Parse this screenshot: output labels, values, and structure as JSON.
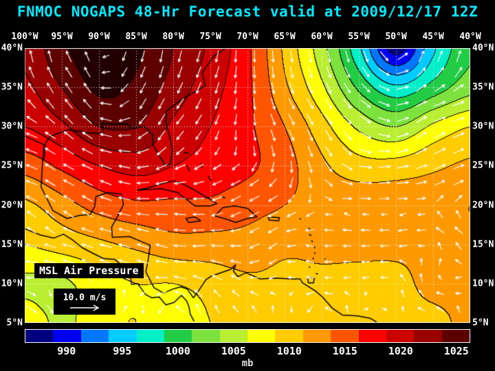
{
  "title": "FNMOC NOGAPS 48-Hr Forecast valid at 2009/12/17 12Z",
  "colors": {
    "background": "#000000",
    "title_text": "#00eaff",
    "axis_text": "#ffffff",
    "grid_lines": "#ffffff",
    "wind_arrows": "#ffffff",
    "coastlines": "#000000"
  },
  "map": {
    "label": "MSL Air Pressure",
    "wind_scale_label": "10.0 m/s",
    "lon_labels": [
      "100°W",
      "95°W",
      "90°W",
      "85°W",
      "80°W",
      "75°W",
      "70°W",
      "65°W",
      "60°W",
      "55°W",
      "50°W",
      "45°W",
      "40°W"
    ],
    "lat_labels": [
      "40°N",
      "35°N",
      "30°N",
      "25°N",
      "20°N",
      "15°N",
      "10°N",
      "5°N"
    ]
  },
  "colorbar": {
    "tick_labels": [
      "990",
      "995",
      "1000",
      "1005",
      "1010",
      "1015",
      "1020",
      "1025"
    ],
    "units": "mb"
  },
  "chart_data": {
    "type": "heatmap",
    "title": "FNMOC NOGAPS 48-Hr Forecast valid at 2009/12/17 12Z",
    "field": "MSL Air Pressure",
    "units": "mb",
    "model": "FNMOC NOGAPS",
    "forecast_hours": 48,
    "valid_time": "2009/12/17 12Z",
    "wind_overlay": "white vector arrows, reference arrow 10.0 m/s",
    "legend_position": "bottom",
    "lon_deg_west": [
      100,
      95,
      90,
      85,
      80,
      75,
      70,
      65,
      60,
      55,
      50,
      45,
      40
    ],
    "lat_deg_north": [
      40,
      35,
      30,
      25,
      20,
      15,
      10,
      5
    ],
    "pressure_mb": [
      [
        1023,
        1027,
        1029,
        1028,
        1025,
        1022,
        1018,
        1012,
        1006,
        998,
        989,
        997,
        1002
      ],
      [
        1022,
        1025,
        1028,
        1027,
        1024,
        1021,
        1018,
        1013,
        1008,
        1002,
        998,
        1001,
        1004
      ],
      [
        1020,
        1022,
        1025,
        1025,
        1022,
        1020,
        1018,
        1015,
        1011,
        1007,
        1005,
        1008,
        1010
      ],
      [
        1016,
        1018,
        1020,
        1021,
        1020,
        1019,
        1018,
        1016,
        1013,
        1011,
        1011,
        1012,
        1013
      ],
      [
        1012,
        1014,
        1016,
        1017,
        1017,
        1017,
        1016,
        1015,
        1014,
        1014,
        1014,
        1014,
        1015
      ],
      [
        1010,
        1011,
        1012,
        1013,
        1014,
        1014,
        1014,
        1013,
        1013,
        1013,
        1013,
        1013,
        1014
      ],
      [
        1007,
        1007,
        1009,
        1010,
        1010,
        1011,
        1012,
        1012,
        1012,
        1012,
        1012,
        1013,
        1013
      ],
      [
        1009,
        1007,
        1009,
        1010,
        1008,
        1010,
        1011,
        1012,
        1011,
        1012,
        1012,
        1012,
        1013
      ]
    ],
    "band_min_mb": 987.5,
    "band_step_mb": 2.5,
    "band_colors": [
      "#000080",
      "#0000ee",
      "#0077ff",
      "#00ccff",
      "#00eec8",
      "#22cc44",
      "#7de23d",
      "#b9ee33",
      "#ffff00",
      "#ffcc00",
      "#ff9900",
      "#ff5500",
      "#ff0000",
      "#cc0000",
      "#990000",
      "#5c0000",
      "#230000"
    ]
  }
}
